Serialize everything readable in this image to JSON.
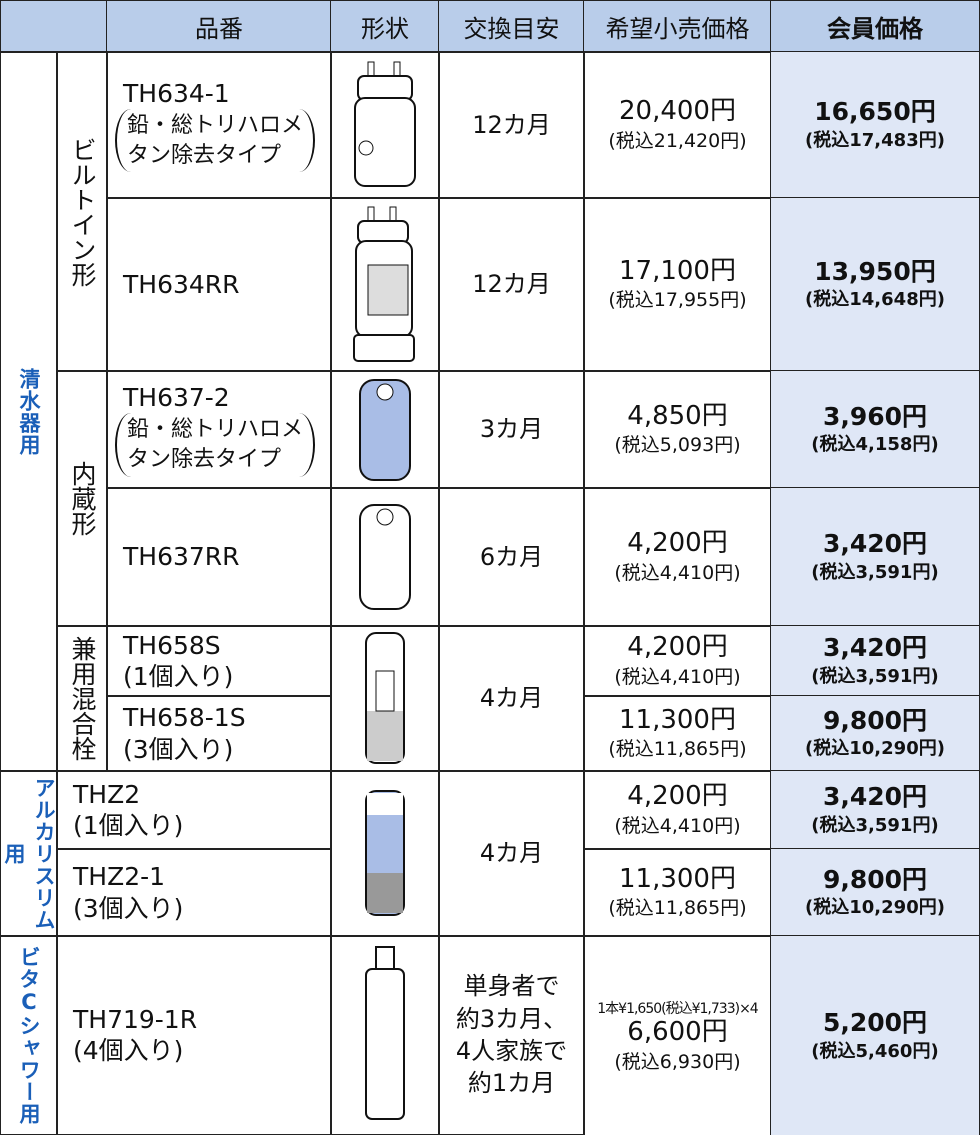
{
  "header": [
    "品番",
    "形状",
    "交換目安",
    "希望小売価格",
    "会員価格"
  ],
  "categories": [
    "清水器用",
    "アルカリスリム用",
    "ビタCシャワー用"
  ],
  "subgroups": [
    "ビルトイン形",
    "内蔵形",
    "兼用混合栓"
  ],
  "rows": [
    {
      "model": "TH634-1",
      "note_lines": [
        "鉛・総トリハロメ",
        "タン除去タイプ"
      ],
      "interval": "12カ月",
      "retail": "20,400円",
      "retail_tax": "(税込21,420円)",
      "member": "16,650円",
      "member_tax": "(税込17,483円)"
    },
    {
      "model": "TH634RR",
      "interval": "12カ月",
      "retail": "17,100円",
      "retail_tax": "(税込17,955円)",
      "member": "13,950円",
      "member_tax": "(税込14,648円)"
    },
    {
      "model": "TH637-2",
      "note_lines": [
        "鉛・総トリハロメ",
        "タン除去タイプ"
      ],
      "interval": "3カ月",
      "retail": "4,850円",
      "retail_tax": "(税込5,093円)",
      "member": "3,960円",
      "member_tax": "(税込4,158円)"
    },
    {
      "model": "TH637RR",
      "interval": "6カ月",
      "retail": "4,200円",
      "retail_tax": "(税込4,410円)",
      "member": "3,420円",
      "member_tax": "(税込3,591円)"
    },
    {
      "model": "TH658S",
      "pack": "(1個入り)",
      "interval": "4カ月",
      "retail": "4,200円",
      "retail_tax": "(税込4,410円)",
      "member": "3,420円",
      "member_tax": "(税込3,591円)"
    },
    {
      "model": "TH658-1S",
      "pack": "(3個入り)",
      "retail": "11,300円",
      "retail_tax": "(税込11,865円)",
      "member": "9,800円",
      "member_tax": "(税込10,290円)"
    },
    {
      "model": "THZ2",
      "pack": "(1個入り)",
      "interval": "4カ月",
      "retail": "4,200円",
      "retail_tax": "(税込4,410円)",
      "member": "3,420円",
      "member_tax": "(税込3,591円)"
    },
    {
      "model": "THZ2-1",
      "pack": "(3個入り)",
      "retail": "11,300円",
      "retail_tax": "(税込11,865円)",
      "member": "9,800円",
      "member_tax": "(税込10,290円)"
    },
    {
      "model": "TH719-1R",
      "pack": "(4個入り)",
      "interval_lines": [
        "単身者で",
        "約3カ月、",
        "4人家族で",
        "約1カ月"
      ],
      "retail_note": "1本¥1,650(税込¥1,733)×4",
      "retail": "6,600円",
      "retail_tax": "(税込6,930円)",
      "member": "5,200円",
      "member_tax": "(税込5,460円)"
    }
  ]
}
